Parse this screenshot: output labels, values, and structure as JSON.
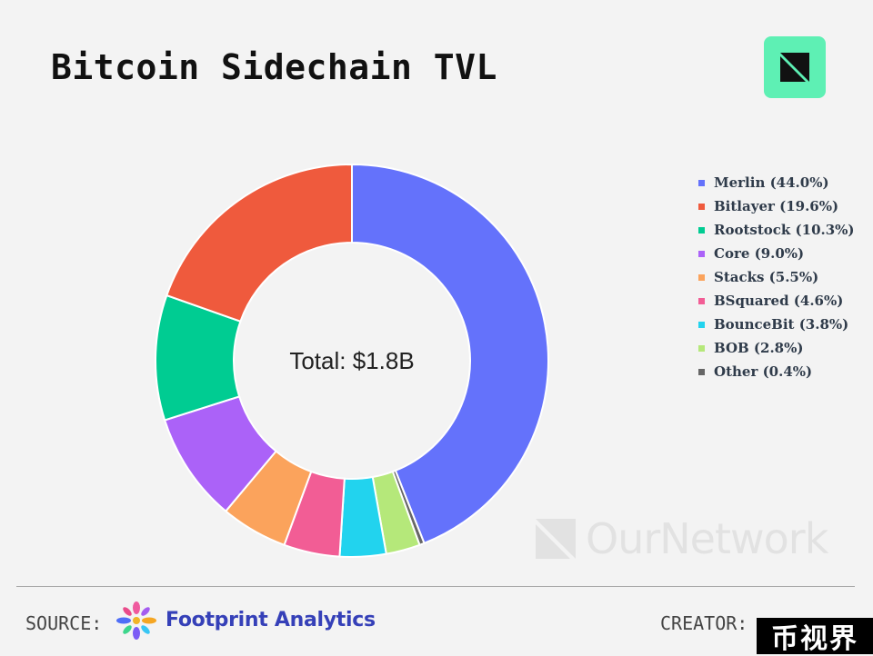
{
  "header": {
    "title": "Bitcoin Sidechain TVL",
    "brand_icon": "ournetwork-logo-icon",
    "brand_color": "#5ef0b4"
  },
  "chart_data": {
    "type": "pie",
    "donut": true,
    "title": "Bitcoin Sidechain TVL",
    "center_label": "Total: $1.8B",
    "legend_position": "right",
    "slices": [
      {
        "label": "Merlin (44.0%)",
        "name": "Merlin",
        "value": 44.0,
        "color": "#6472fb"
      },
      {
        "label": "BOB (2.8%)",
        "name": "BOB",
        "value": 2.8,
        "color": "#b5e87a"
      },
      {
        "label": "BounceBit (3.8%)",
        "name": "BounceBit",
        "value": 3.8,
        "color": "#22d3ee"
      },
      {
        "label": "BSquared (4.6%)",
        "name": "BSquared",
        "value": 4.6,
        "color": "#f25d95"
      },
      {
        "label": "Stacks (5.5%)",
        "name": "Stacks",
        "value": 5.5,
        "color": "#fba35c"
      },
      {
        "label": "Core (9.0%)",
        "name": "Core",
        "value": 9.0,
        "color": "#ab62f8"
      },
      {
        "label": "Rootstock (10.3%)",
        "name": "Rootstock",
        "value": 10.3,
        "color": "#00cc92"
      },
      {
        "label": "Bitlayer (19.6%)",
        "name": "Bitlayer",
        "value": 19.6,
        "color": "#ef5a3d"
      }
    ],
    "slice_order_clockwise": [
      "Merlin",
      "Other",
      "BOB",
      "BounceBit",
      "BSquared",
      "Stacks",
      "Core",
      "Rootstock",
      "Bitlayer"
    ],
    "other": {
      "label": "Other (0.4%)",
      "name": "Other",
      "value": 0.4,
      "color": "#666666"
    },
    "legend_order": [
      "Merlin",
      "Bitlayer",
      "Rootstock",
      "Core",
      "Stacks",
      "BSquared",
      "BounceBit",
      "BOB",
      "Other"
    ]
  },
  "watermark": {
    "text": "OurNetwork"
  },
  "footer": {
    "source_label": "SOURCE:",
    "source_name": "Footprint Analytics",
    "creator_label": "CREATOR:",
    "stamp_text": "币视界"
  }
}
